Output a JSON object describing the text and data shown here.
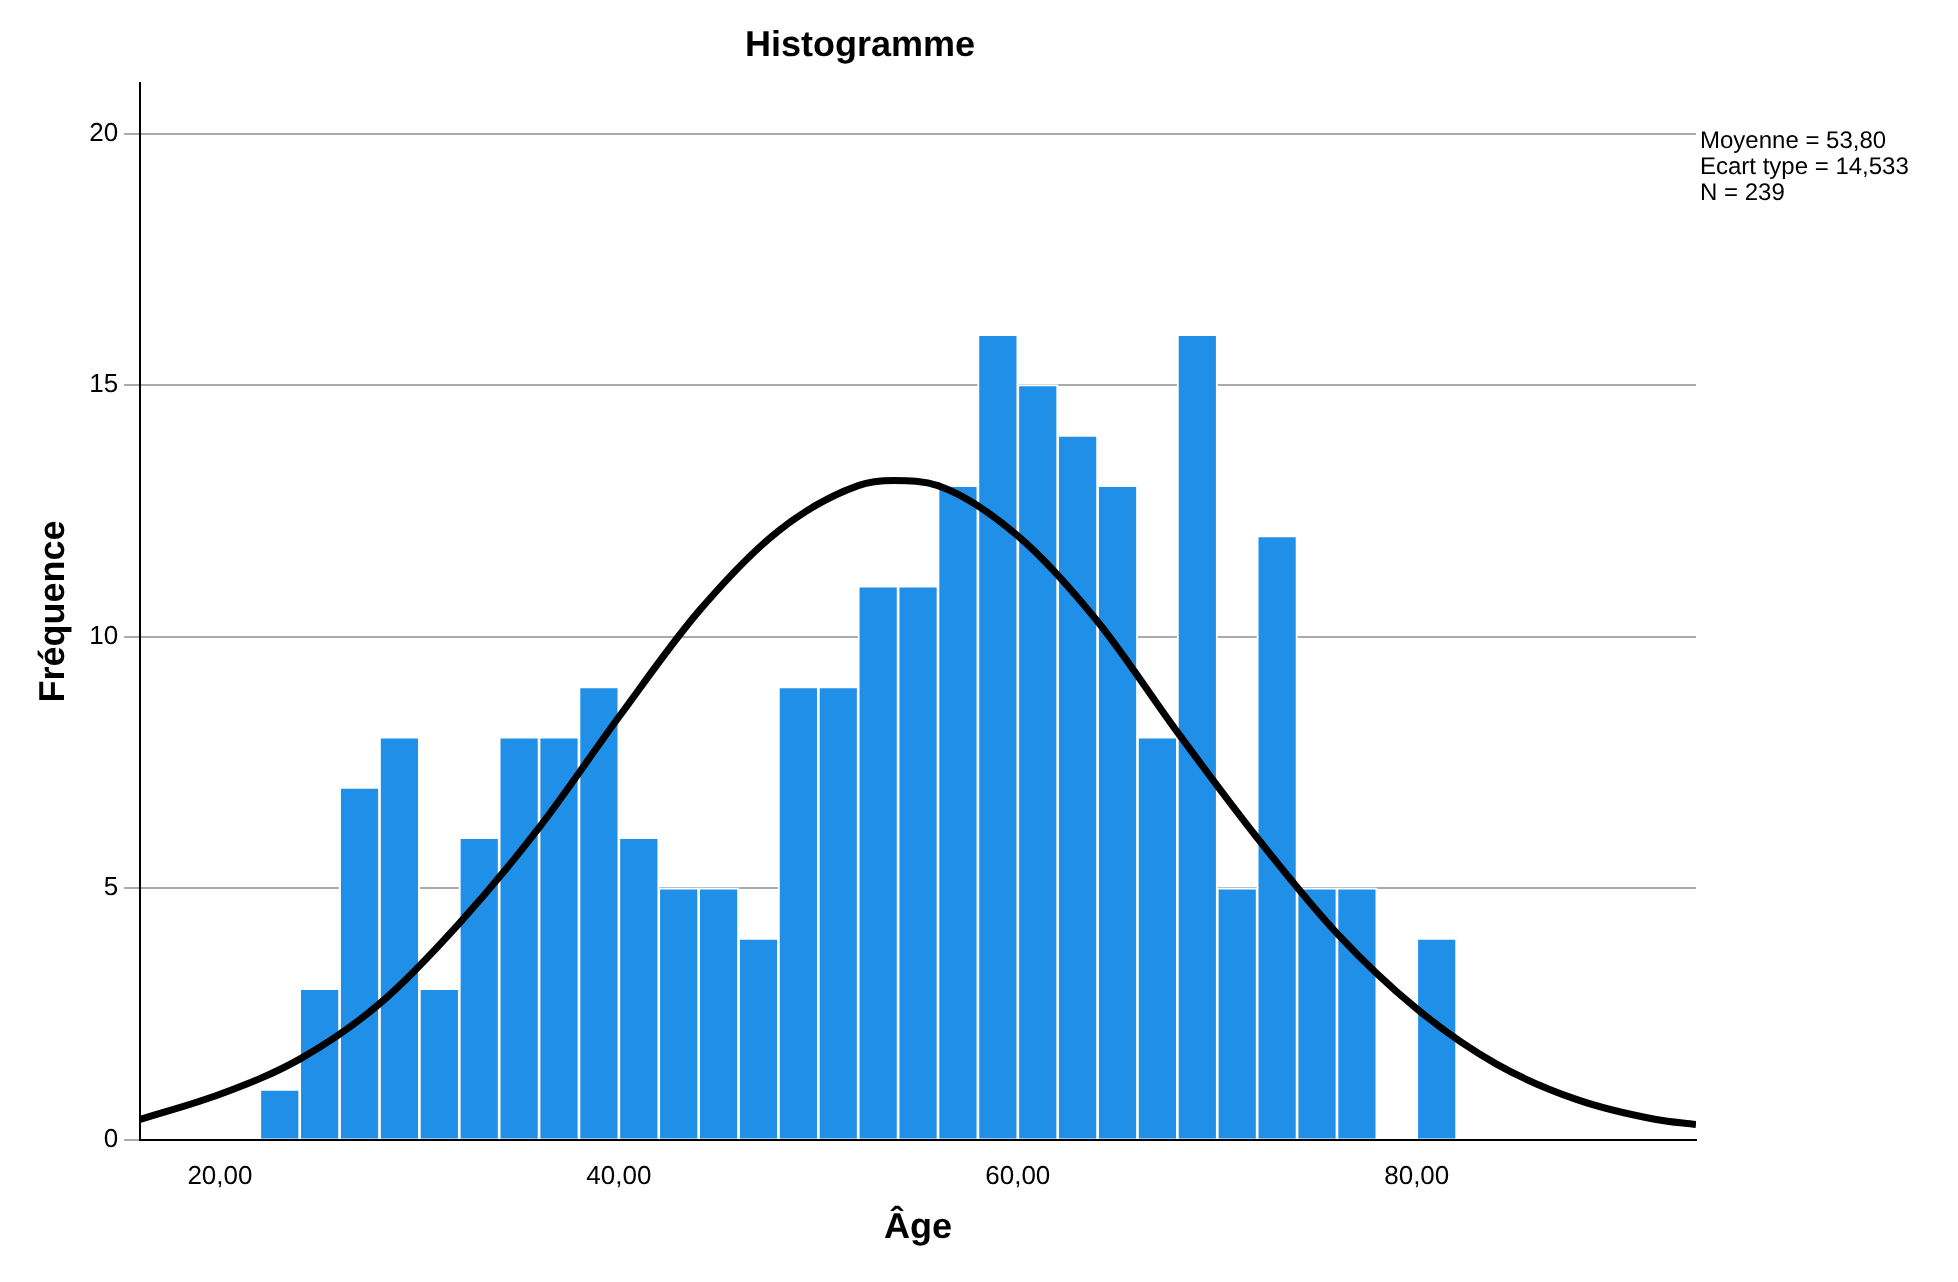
{
  "chart_data": {
    "type": "histogram",
    "title": "Histogramme",
    "xlabel": "Âge",
    "ylabel": "Fréquence",
    "bins": [
      22,
      24,
      26,
      28,
      30,
      32,
      34,
      36,
      38,
      40,
      42,
      44,
      46,
      48,
      50,
      52,
      54,
      56,
      58,
      60,
      62,
      64,
      66,
      68,
      70,
      72,
      74,
      76,
      78,
      80,
      82
    ],
    "values": [
      1,
      3,
      7,
      8,
      3,
      6,
      8,
      8,
      9,
      6,
      5,
      5,
      4,
      9,
      9,
      11,
      11,
      13,
      16,
      15,
      14,
      13,
      8,
      16,
      5,
      12,
      5,
      5,
      0,
      4
    ],
    "color": "#1f8fe8",
    "series": [
      {
        "type": "line",
        "color": "#000000",
        "marker": "none",
        "x": [
          16,
          20,
          24,
          28,
          32,
          36,
          40,
          44,
          48,
          52,
          53.8,
          56,
          60,
          64,
          68,
          72,
          76,
          80,
          84,
          88,
          92,
          94
        ],
        "values": [
          0.4,
          0.9,
          1.6,
          2.7,
          4.3,
          6.2,
          8.4,
          10.5,
          12.1,
          13.0,
          13.1,
          13.0,
          12.0,
          10.3,
          8.1,
          6.0,
          4.1,
          2.6,
          1.5,
          0.8,
          0.4,
          0.3
        ]
      }
    ],
    "xlim": [
      16,
      94
    ],
    "xticks": [
      {
        "value": 20,
        "label": "20,00"
      },
      {
        "value": 40,
        "label": "40,00"
      },
      {
        "value": 60,
        "label": "60,00"
      },
      {
        "value": 80,
        "label": "80,00"
      }
    ],
    "ylim": [
      0,
      21
    ],
    "yticks": [
      0,
      5,
      10,
      15,
      20
    ],
    "grid": "y",
    "legend": false,
    "annotations": [
      "Moyenne = 53,80",
      "Ecart type = 14,533",
      "N = 239"
    ]
  }
}
